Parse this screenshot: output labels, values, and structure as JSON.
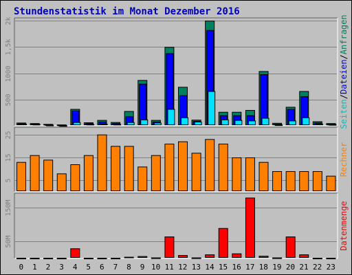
{
  "chart_data": {
    "type": "bar",
    "title": "Stundenstatistik im Monat Dezember 2016",
    "categories": [
      "0",
      "1",
      "2",
      "3",
      "4",
      "5",
      "6",
      "7",
      "8",
      "9",
      "10",
      "11",
      "12",
      "13",
      "14",
      "15",
      "16",
      "17",
      "18",
      "19",
      "20",
      "21",
      "22",
      "23"
    ],
    "colors": {
      "background": "#C0C0C0",
      "outer": "#FFFFFF",
      "title": "#0000C0",
      "grid": "#808080",
      "tick": "#808080",
      "hits": "#00805F",
      "files": "#0000FF",
      "pages": "#00E0FF",
      "hosts": "#FF8000",
      "volume": "#FF0000"
    },
    "panels": [
      {
        "name": "top",
        "ylabels": [
          "Seiten",
          "Dateien",
          "Anfragen"
        ],
        "ylabel_colors": [
          "#00C0C0",
          "#0000FF",
          "#00805F"
        ],
        "yticks": [
          {
            "value": 500,
            "label": "500"
          },
          {
            "value": 1000,
            "label": "1000"
          },
          {
            "value": 1500,
            "label": "1,5k"
          },
          {
            "value": 2000,
            "label": "2k"
          }
        ],
        "ylim": [
          0,
          2000
        ],
        "series": [
          {
            "name": "Anfragen",
            "values": [
              60,
              50,
              35,
              25,
              320,
              65,
              110,
              70,
              280,
              870,
              110,
              1500,
              740,
              115,
              2000,
              265,
              265,
              300,
              1040,
              55,
              360,
              660,
              85,
              50
            ]
          },
          {
            "name": "Dateien",
            "values": [
              45,
              40,
              28,
              18,
              290,
              50,
              80,
              50,
              180,
              800,
              80,
              1380,
              580,
              90,
              1820,
              200,
              200,
              200,
              980,
              35,
              320,
              560,
              60,
              35
            ]
          },
          {
            "name": "Seiten",
            "values": [
              40,
              35,
              20,
              10,
              70,
              35,
              40,
              35,
              70,
              120,
              60,
              320,
              160,
              80,
              660,
              120,
              110,
              100,
              150,
              25,
              100,
              160,
              40,
              30
            ]
          }
        ]
      },
      {
        "name": "middle",
        "ylabel": "Rechner",
        "yticks": [
          {
            "value": 5,
            "label": "5"
          },
          {
            "value": 15,
            "label": "15"
          },
          {
            "value": 25,
            "label": "25"
          }
        ],
        "ylim": [
          0,
          27
        ],
        "values": [
          13,
          16,
          14,
          8,
          12,
          16,
          25,
          20,
          20,
          11,
          16,
          21,
          22,
          17,
          23,
          21,
          15,
          15,
          13,
          9,
          9,
          9,
          9,
          7
        ]
      },
      {
        "name": "bottom",
        "ylabel": "Datenmenge",
        "yticks": [
          {
            "value": 50,
            "label": "50M"
          },
          {
            "value": 150,
            "label": "150M"
          }
        ],
        "ylim": [
          0,
          185
        ],
        "values": [
          2,
          2,
          2,
          2,
          30,
          2,
          2,
          2,
          5,
          7,
          3,
          65,
          10,
          3,
          12,
          90,
          15,
          180,
          8,
          3,
          65,
          12,
          2,
          2
        ]
      }
    ]
  }
}
